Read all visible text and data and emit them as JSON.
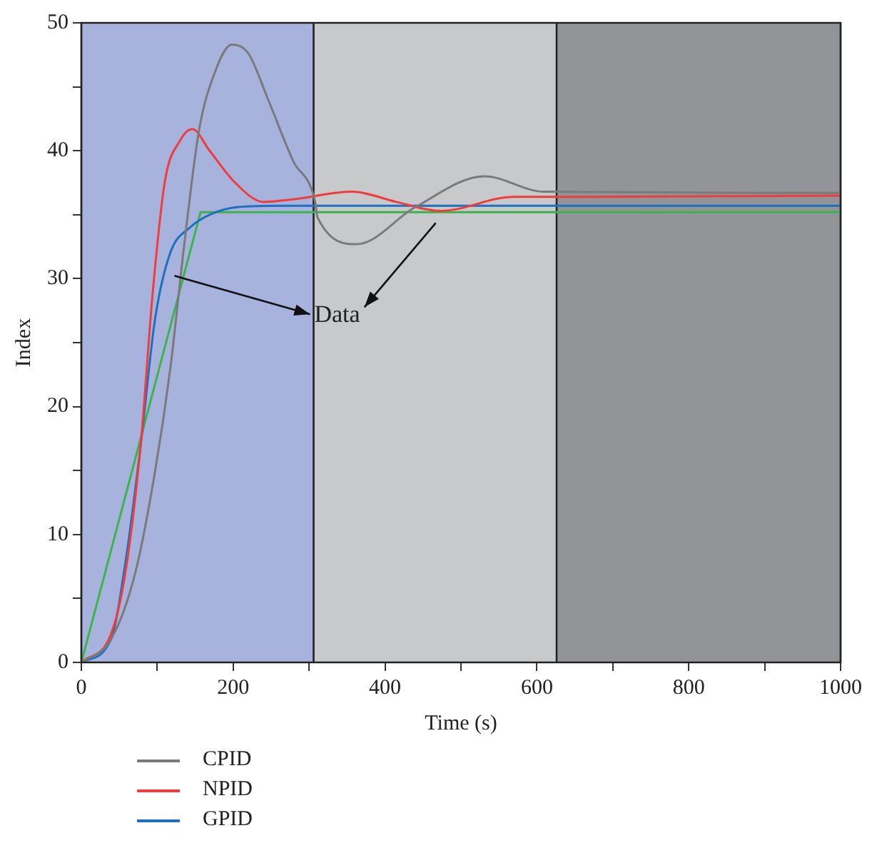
{
  "chart_data": {
    "type": "line",
    "xlabel": "Time (s)",
    "ylabel": "Index",
    "xlim": [
      0,
      1000
    ],
    "xticks": [
      0,
      {
        "value": 100,
        "label": null
      },
      200,
      {
        "value": 300,
        "label": null
      },
      400,
      {
        "value": 500,
        "label": null
      },
      600,
      {
        "value": 700,
        "label": null
      },
      800,
      {
        "value": 900,
        "label": null
      },
      1000
    ],
    "ylim": [
      0,
      50
    ],
    "yticks": [
      0,
      {
        "value": 5,
        "label": null
      },
      10,
      {
        "value": 15,
        "label": null
      },
      20,
      {
        "value": 25,
        "label": null
      },
      30,
      {
        "value": 35,
        "label": null
      },
      40,
      {
        "value": 45,
        "label": null
      },
      50
    ],
    "legend": "bottom left",
    "marker": "none",
    "line_style": "solid",
    "bands": [
      {
        "axis": "x",
        "from": 0,
        "to": 306,
        "color": "#a7b3dc"
      },
      {
        "axis": "x",
        "from": 306,
        "to": 626,
        "color": "#c8c9cb"
      },
      {
        "axis": "x",
        "from": 626,
        "to": 1000,
        "color": "#939497"
      }
    ],
    "annotations": [
      "Data"
    ],
    "series": [
      {
        "name": "CPID",
        "color": "#7a7a7a",
        "x": [
          0,
          39,
          71,
          97,
          117,
          136,
          155,
          175,
          198,
          220,
          246,
          279,
          308,
          311,
          363,
          440,
          531,
          609,
          1000
        ],
        "values": [
          0,
          1.8,
          7.0,
          14.9,
          22.9,
          32.9,
          41.6,
          46.0,
          48.3,
          47.6,
          44.0,
          39.2,
          36.0,
          34.8,
          32.7,
          35.6,
          38.0,
          36.8,
          36.7
        ]
      },
      {
        "name": "NPID",
        "color": "#f03c3c",
        "x": [
          0,
          39,
          58,
          78,
          94,
          110,
          130,
          146,
          169,
          201,
          240,
          279,
          357,
          415,
          473,
          570,
          674,
          1000
        ],
        "values": [
          0,
          2.2,
          7.0,
          16.9,
          28.9,
          37.6,
          40.8,
          41.7,
          40.0,
          37.6,
          36.0,
          36.2,
          36.8,
          36.0,
          35.3,
          36.4,
          36.4,
          36.5
        ]
      },
      {
        "name": "GPID",
        "color": "#1f6fc0",
        "x": [
          0,
          39,
          58,
          78,
          97,
          117,
          143,
          169,
          207,
          265,
          1000
        ],
        "values": [
          0,
          1.8,
          7.8,
          16.9,
          26.8,
          32.0,
          34.0,
          35.0,
          35.6,
          35.7,
          35.7
        ]
      },
      {
        "color": "#3cb44b",
        "x": [
          0,
          157,
          1000
        ],
        "values": [
          0,
          35.2,
          35.2
        ]
      }
    ]
  }
}
